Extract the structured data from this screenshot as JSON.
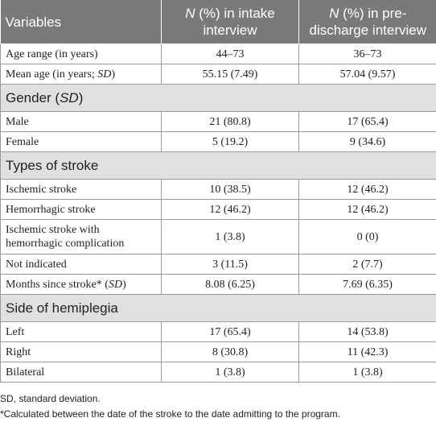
{
  "header": {
    "col1": "Variables",
    "col2_italic": "N",
    "col2_rest": " (%) in intake interview",
    "col3_italic": "N",
    "col3_rest": " (%) in pre-discharge interview"
  },
  "rows": {
    "age_range": {
      "label": "Age range (in years)",
      "intake": "44–73",
      "discharge": "36–73"
    },
    "mean_age": {
      "label_main": "Mean age (in years; ",
      "label_italic": "SD",
      "label_end": ")",
      "intake": "55.15 (7.49)",
      "discharge": "57.04 (9.57)"
    },
    "gender_section": {
      "label_main": "Gender (",
      "label_italic": "SD",
      "label_end": ")"
    },
    "male": {
      "label": "Male",
      "intake": "21 (80.8)",
      "discharge": "17 (65.4)"
    },
    "female": {
      "label": "Female",
      "intake": "5 (19.2)",
      "discharge": "9 (34.6)"
    },
    "stroke_section": {
      "label": "Types of stroke"
    },
    "ischemic": {
      "label": "Ischemic stroke",
      "intake": "10 (38.5)",
      "discharge": "12 (46.2)"
    },
    "hemorrhagic": {
      "label": "Hemorrhagic stroke",
      "intake": "12 (46.2)",
      "discharge": "12 (46.2)"
    },
    "ischemic_complication": {
      "label": "Ischemic stroke with hemorrhagic complication",
      "intake": "1 (3.8)",
      "discharge": "0 (0)"
    },
    "not_indicated": {
      "label": "Not indicated",
      "intake": "3 (11.5)",
      "discharge": "2 (7.7)"
    },
    "months_since": {
      "label_main": "Months since stroke* (",
      "label_italic": "SD",
      "label_end": ")",
      "intake": "8.08 (6.25)",
      "discharge": "7.69 (6.35)"
    },
    "hemiplegia_section": {
      "label": "Side of hemiplegia"
    },
    "left": {
      "label": "Left",
      "intake": "17 (65.4)",
      "discharge": "14 (53.8)"
    },
    "right": {
      "label": "Right",
      "intake": "8 (30.8)",
      "discharge": "11 (42.3)"
    },
    "bilateral": {
      "label": "Bilateral",
      "intake": "1 (3.8)",
      "discharge": "1 (3.8)"
    }
  },
  "footnotes": {
    "sd": "SD, standard deviation.",
    "asterisk": "*Calculated between the date of the stroke to the date admitting to the program."
  },
  "colors": {
    "header_bg": "#7a7a7a",
    "section_bg": "#e0e0e0"
  }
}
